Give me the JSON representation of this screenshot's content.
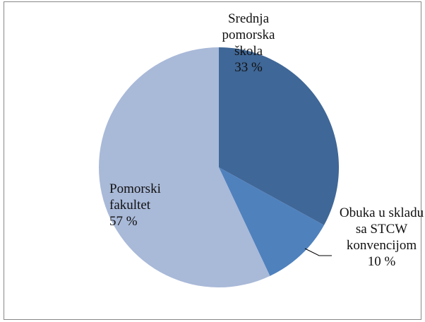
{
  "chart_data": {
    "type": "pie",
    "categories": [
      "Srednja pomorska škola",
      "Obuka u skladu sa STCW konvencijom",
      "Pomorski fakultet"
    ],
    "values": [
      33,
      10,
      57
    ],
    "value_labels": [
      "33 %",
      "10 %",
      "57 %"
    ],
    "colors": [
      "#3f6797",
      "#4f81bd",
      "#a9b9d8"
    ]
  }
}
